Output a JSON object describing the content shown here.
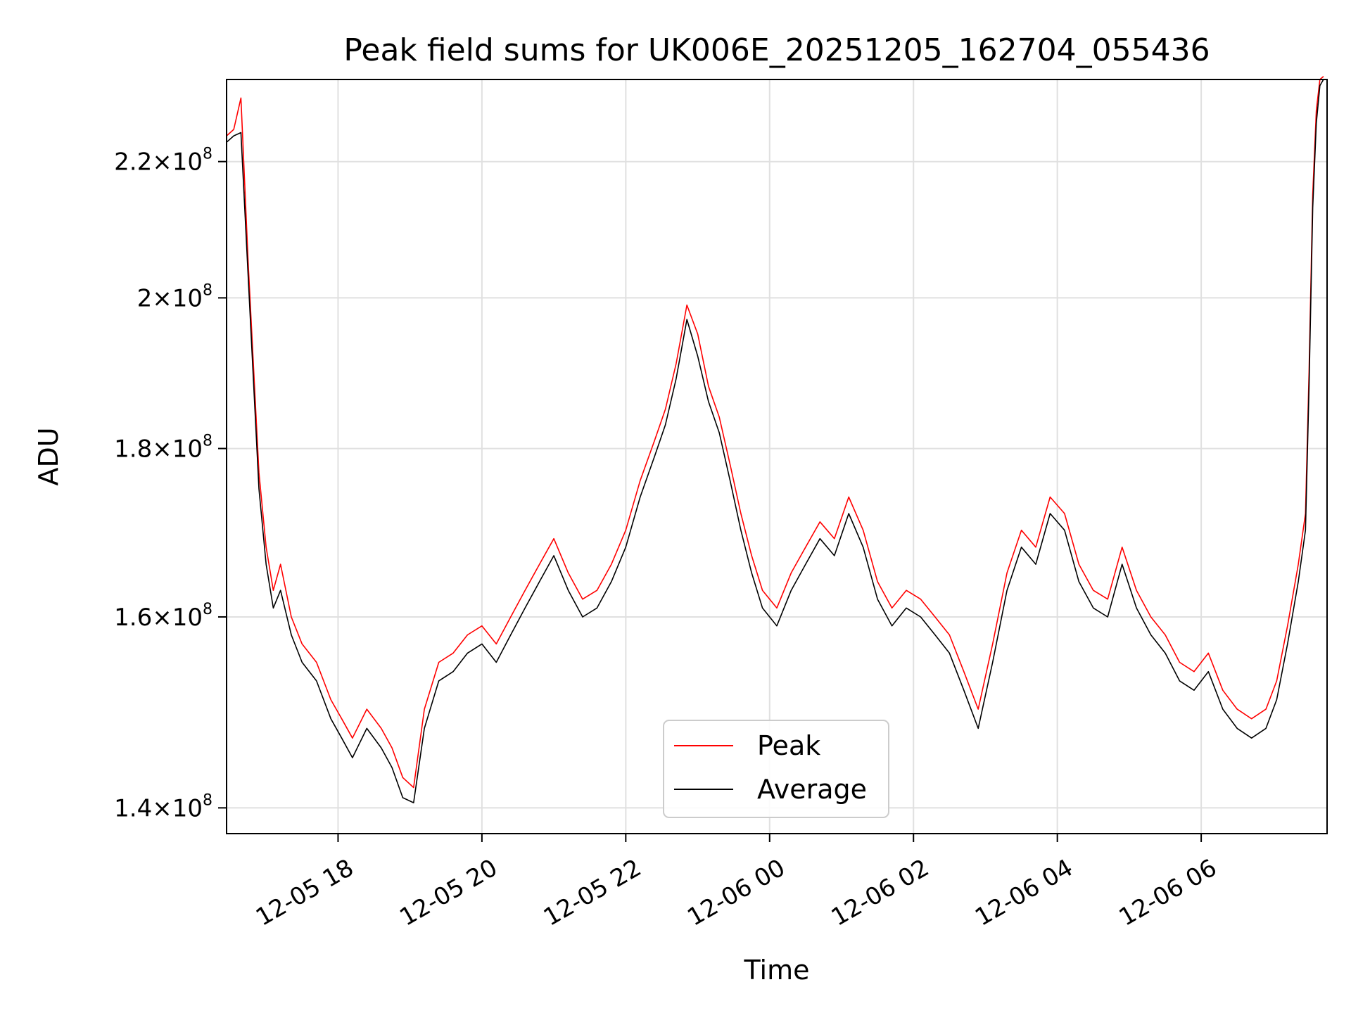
{
  "chart_data": {
    "type": "line",
    "title": "Peak field sums for UK006E_20251205_162704_055436",
    "xlabel": "Time",
    "ylabel": "ADU",
    "yscale": "log",
    "xlim_hours": [
      16.45,
      7.75
    ],
    "ylim": [
      137500000,
      233000000
    ],
    "x_ticks": [
      {
        "label": "12-05 18",
        "hour": 18
      },
      {
        "label": "12-05 20",
        "hour": 20
      },
      {
        "label": "12-05 22",
        "hour": 22
      },
      {
        "label": "12-06 00",
        "hour": 24
      },
      {
        "label": "12-06 02",
        "hour": 26
      },
      {
        "label": "12-06 04",
        "hour": 28
      },
      {
        "label": "12-06 06",
        "hour": 30
      }
    ],
    "y_ticks": [
      {
        "mantissa": "1.4",
        "base": "10",
        "exponent": "8",
        "value": 140000000
      },
      {
        "mantissa": "1.6",
        "base": "10",
        "exponent": "8",
        "value": 160000000
      },
      {
        "mantissa": "1.8",
        "base": "10",
        "exponent": "8",
        "value": 180000000
      },
      {
        "mantissa": "2",
        "base": "10",
        "exponent": "8",
        "value": 200000000
      },
      {
        "mantissa": "2.2",
        "base": "10",
        "exponent": "8",
        "value": 220000000
      }
    ],
    "grid": true,
    "legend_position": "lower-center",
    "series": [
      {
        "name": "Peak",
        "color": "#ff0000",
        "x_hours": [
          16.45,
          16.55,
          16.65,
          16.75,
          16.9,
          17.0,
          17.1,
          17.2,
          17.35,
          17.5,
          17.7,
          17.9,
          18.05,
          18.2,
          18.4,
          18.6,
          18.75,
          18.9,
          19.05,
          19.2,
          19.4,
          19.6,
          19.8,
          20.0,
          20.2,
          20.4,
          20.6,
          20.8,
          21.0,
          21.2,
          21.4,
          21.6,
          21.8,
          22.0,
          22.2,
          22.4,
          22.55,
          22.7,
          22.85,
          23.0,
          23.15,
          23.3,
          23.45,
          23.6,
          23.75,
          23.9,
          24.1,
          24.3,
          24.5,
          24.7,
          24.9,
          25.1,
          25.3,
          25.5,
          25.7,
          25.9,
          26.1,
          26.3,
          26.5,
          26.7,
          26.9,
          27.1,
          27.3,
          27.5,
          27.7,
          27.9,
          28.1,
          28.3,
          28.5,
          28.7,
          28.9,
          29.1,
          29.3,
          29.5,
          29.7,
          29.9,
          30.1,
          30.3,
          30.5,
          30.7,
          30.9,
          31.05,
          31.2,
          31.35,
          31.45,
          31.5,
          31.55,
          31.6,
          31.65,
          31.7
        ],
        "values": [
          224000000,
          225000000,
          230000000,
          205000000,
          177000000,
          168000000,
          163000000,
          166000000,
          160000000,
          157000000,
          155000000,
          151000000,
          149000000,
          147000000,
          150000000,
          148000000,
          146000000,
          143000000,
          142000000,
          150000000,
          155000000,
          156000000,
          158000000,
          159000000,
          157000000,
          160000000,
          163000000,
          166000000,
          169000000,
          165000000,
          162000000,
          163000000,
          166000000,
          170000000,
          176000000,
          181000000,
          185000000,
          191000000,
          199000000,
          195000000,
          188000000,
          184000000,
          178000000,
          172000000,
          167000000,
          163000000,
          161000000,
          165000000,
          168000000,
          171000000,
          169000000,
          174000000,
          170000000,
          164000000,
          161000000,
          163000000,
          162000000,
          160000000,
          158000000,
          154000000,
          150000000,
          157000000,
          165000000,
          170000000,
          168000000,
          174000000,
          172000000,
          166000000,
          163000000,
          162000000,
          168000000,
          163000000,
          160000000,
          158000000,
          155000000,
          154000000,
          156000000,
          152000000,
          150000000,
          149000000,
          150000000,
          153000000,
          159000000,
          166000000,
          172000000,
          190000000,
          215000000,
          228000000,
          233000000,
          233500000
        ]
      },
      {
        "name": "Average",
        "color": "#000000",
        "x_hours": [
          16.45,
          16.55,
          16.65,
          16.75,
          16.9,
          17.0,
          17.1,
          17.2,
          17.35,
          17.5,
          17.7,
          17.9,
          18.05,
          18.2,
          18.4,
          18.6,
          18.75,
          18.9,
          19.05,
          19.2,
          19.4,
          19.6,
          19.8,
          20.0,
          20.2,
          20.4,
          20.6,
          20.8,
          21.0,
          21.2,
          21.4,
          21.6,
          21.8,
          22.0,
          22.2,
          22.4,
          22.55,
          22.7,
          22.85,
          23.0,
          23.15,
          23.3,
          23.45,
          23.6,
          23.75,
          23.9,
          24.1,
          24.3,
          24.5,
          24.7,
          24.9,
          25.1,
          25.3,
          25.5,
          25.7,
          25.9,
          26.1,
          26.3,
          26.5,
          26.7,
          26.9,
          27.1,
          27.3,
          27.5,
          27.7,
          27.9,
          28.1,
          28.3,
          28.5,
          28.7,
          28.9,
          29.1,
          29.3,
          29.5,
          29.7,
          29.9,
          30.1,
          30.3,
          30.5,
          30.7,
          30.9,
          31.05,
          31.2,
          31.35,
          31.45,
          31.5,
          31.55,
          31.6,
          31.65,
          31.7
        ],
        "values": [
          223000000,
          224000000,
          224500000,
          203000000,
          175000000,
          166000000,
          161000000,
          163000000,
          158000000,
          155000000,
          153000000,
          149000000,
          147000000,
          145000000,
          148000000,
          146000000,
          144000000,
          141000000,
          140500000,
          148000000,
          153000000,
          154000000,
          156000000,
          157000000,
          155000000,
          158000000,
          161000000,
          164000000,
          167000000,
          163000000,
          160000000,
          161000000,
          164000000,
          168000000,
          174000000,
          179000000,
          183000000,
          189000000,
          197000000,
          192000000,
          186000000,
          182000000,
          176000000,
          170000000,
          165000000,
          161000000,
          159000000,
          163000000,
          166000000,
          169000000,
          167000000,
          172000000,
          168000000,
          162000000,
          159000000,
          161000000,
          160000000,
          158000000,
          156000000,
          152000000,
          148000000,
          155000000,
          163000000,
          168000000,
          166000000,
          172000000,
          170000000,
          164000000,
          161000000,
          160000000,
          166000000,
          161000000,
          158000000,
          156000000,
          153000000,
          152000000,
          154000000,
          150000000,
          148000000,
          147000000,
          148000000,
          151000000,
          157000000,
          164000000,
          170000000,
          188000000,
          213000000,
          226000000,
          232000000,
          233000000
        ]
      }
    ]
  }
}
